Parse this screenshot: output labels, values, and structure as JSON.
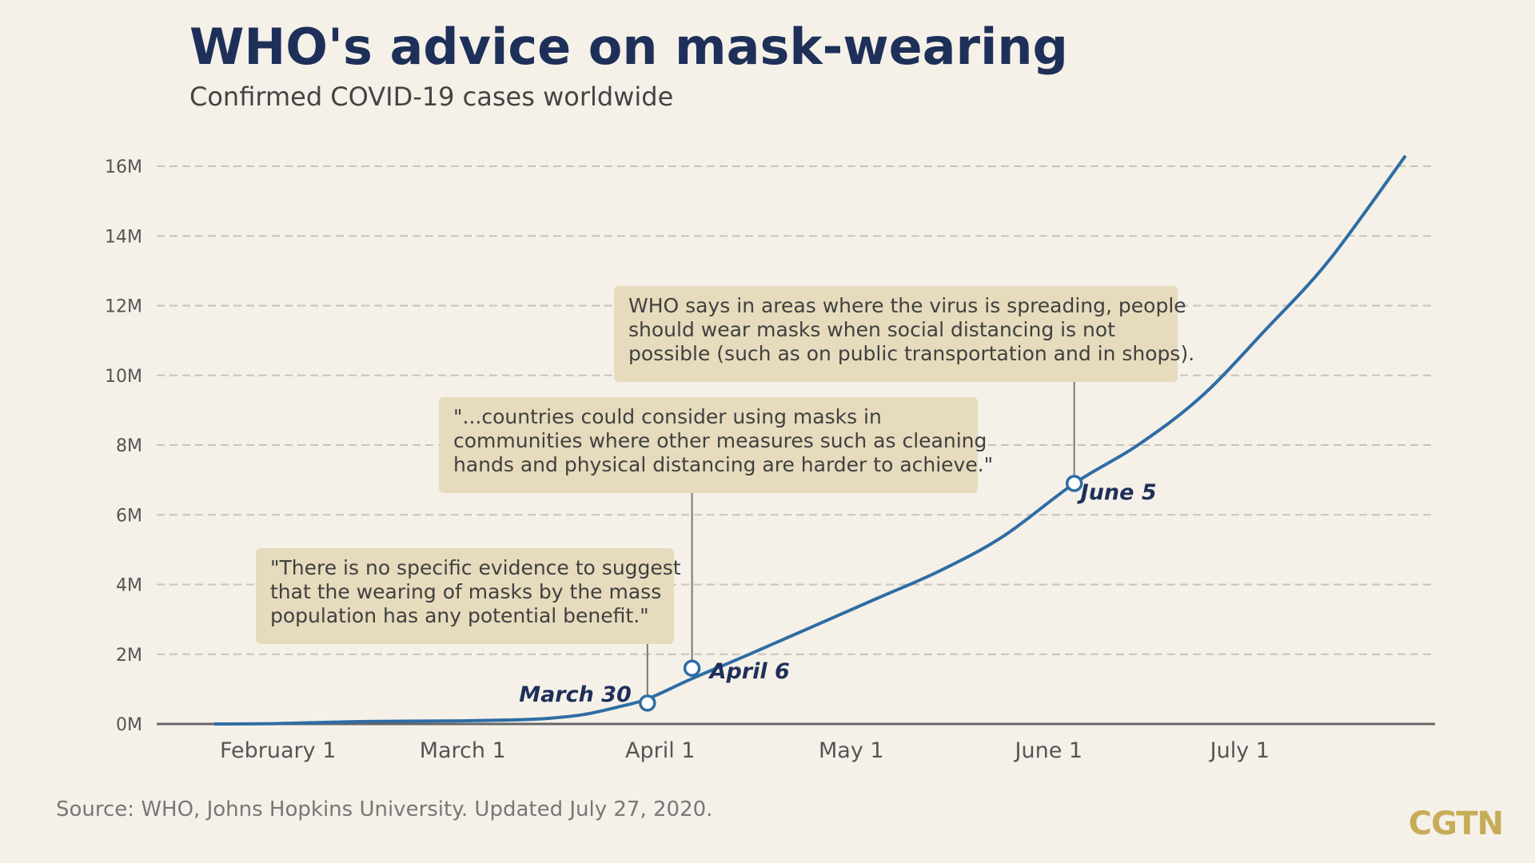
{
  "title": "WHO's advice on mask-wearing",
  "subtitle": "Confirmed COVID-19 cases worldwide",
  "source": "Source: WHO, Johns Hopkins University. Updated July 27, 2020.",
  "logo": "CGTN",
  "colors": {
    "line": "#2e6da4",
    "title": "#1e3059",
    "callout": "#e6dbbd",
    "logo": "#c6ac57",
    "background": "#f5f1e9"
  },
  "callouts": [
    {
      "id": "march",
      "lines": [
        "\"There is no specific evidence to suggest",
        "that the wearing of masks by the mass",
        "population has any potential benefit.\""
      ]
    },
    {
      "id": "april",
      "lines": [
        "\"...countries could consider using masks in",
        "communities where other measures such as cleaning",
        "hands and physical distancing are harder to achieve.\""
      ]
    },
    {
      "id": "june",
      "lines": [
        "WHO says in areas where the virus is spreading, people",
        "should wear masks when social distancing is not",
        "possible (such as on public transportation and in shops)."
      ]
    }
  ],
  "chart_data": {
    "type": "line",
    "title": "WHO's advice on mask-wearing",
    "subtitle": "Confirmed COVID-19 cases worldwide",
    "xlabel": "",
    "ylabel": "",
    "x_range": [
      "2020-01-22",
      "2020-07-27"
    ],
    "ylim": [
      0,
      16
    ],
    "y_unit": "M",
    "y_ticks": [
      "0M",
      "2M",
      "4M",
      "6M",
      "8M",
      "10M",
      "12M",
      "14M",
      "16M"
    ],
    "x_ticks": [
      {
        "date": "2020-02-01",
        "label": "February 1"
      },
      {
        "date": "2020-03-01",
        "label": "March 1"
      },
      {
        "date": "2020-04-01",
        "label": "April 1"
      },
      {
        "date": "2020-05-01",
        "label": "May 1"
      },
      {
        "date": "2020-06-01",
        "label": "June 1"
      },
      {
        "date": "2020-07-01",
        "label": "July 1"
      }
    ],
    "grid": true,
    "series": [
      {
        "x": [
          "2020-01-22",
          "2020-02-01",
          "2020-02-15",
          "2020-03-01",
          "2020-03-10",
          "2020-03-15",
          "2020-03-20",
          "2020-03-25",
          "2020-03-30",
          "2020-04-06",
          "2020-04-15",
          "2020-04-25",
          "2020-05-05",
          "2020-05-15",
          "2020-05-25",
          "2020-06-05",
          "2020-06-15",
          "2020-06-25",
          "2020-07-05",
          "2020-07-15",
          "2020-07-27"
        ],
        "y": [
          0.0006,
          0.012,
          0.07,
          0.09,
          0.12,
          0.17,
          0.27,
          0.47,
          0.72,
          1.3,
          2.0,
          2.8,
          3.6,
          4.4,
          5.4,
          6.9,
          8.0,
          9.4,
          11.3,
          13.3,
          16.3
        ]
      }
    ],
    "events": [
      {
        "date": "2020-03-30",
        "value": 0.6,
        "label": "March 30"
      },
      {
        "date": "2020-04-06",
        "value": 1.6,
        "label": "April 6"
      },
      {
        "date": "2020-06-05",
        "value": 6.9,
        "label": "June 5"
      }
    ]
  }
}
